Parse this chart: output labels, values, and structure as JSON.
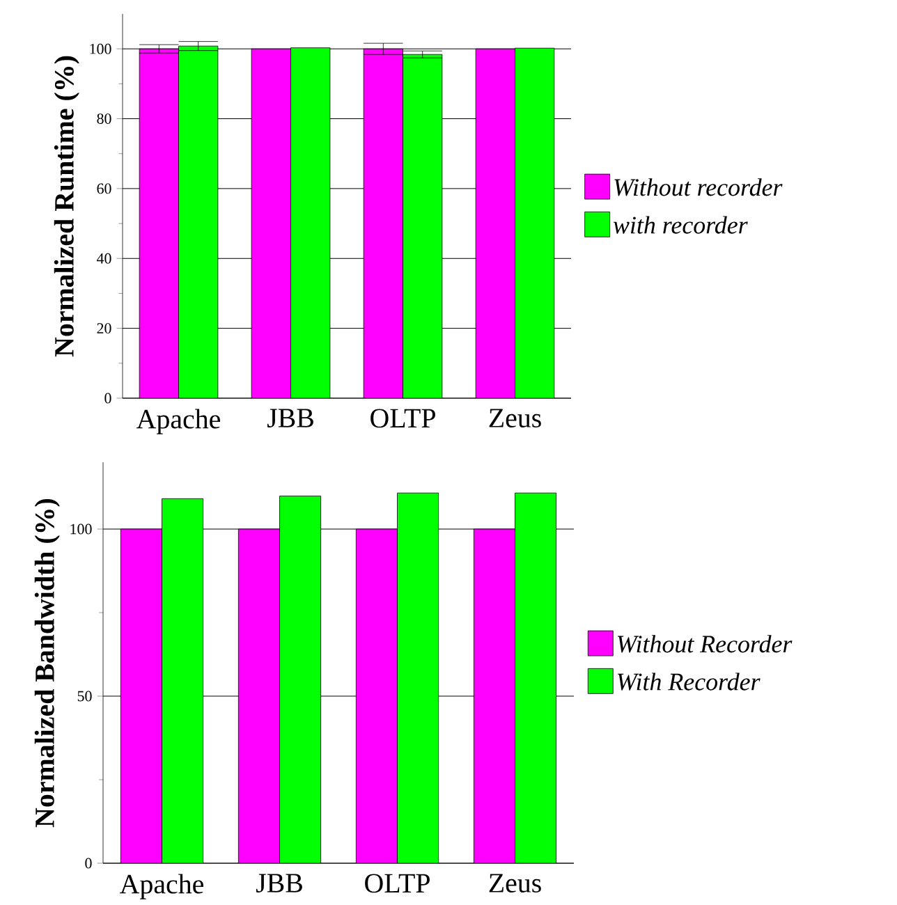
{
  "chart_data": [
    {
      "type": "bar",
      "ylabel": "Normalized Runtime (%)",
      "categories": [
        "Apache",
        "JBB",
        "OLTP",
        "Zeus"
      ],
      "series": [
        {
          "name": "Without recorder",
          "color": "#ff00ff",
          "values": [
            100,
            100,
            100,
            100
          ],
          "errors": [
            1.2,
            null,
            1.6,
            null
          ]
        },
        {
          "name": "with recorder",
          "color": "#00ff00",
          "values": [
            100.8,
            100.3,
            98.4,
            100.2
          ],
          "errors": [
            1.3,
            null,
            1,
            null
          ]
        }
      ],
      "ylim": [
        0,
        110
      ],
      "yticks": [
        0,
        20,
        40,
        60,
        80,
        100
      ],
      "grid": "y",
      "legend": "right"
    },
    {
      "type": "bar",
      "ylabel": "Normalized Bandwidth (%)",
      "categories": [
        "Apache",
        "JBB",
        "OLTP",
        "Zeus"
      ],
      "series": [
        {
          "name": "Without Recorder",
          "color": "#ff00ff",
          "values": [
            100,
            100,
            100,
            100
          ]
        },
        {
          "name": "With Recorder",
          "color": "#00ff00",
          "values": [
            109.1,
            109.9,
            110.8,
            110.8
          ]
        }
      ],
      "ylim": [
        0,
        120
      ],
      "yticks": [
        0,
        50,
        100
      ],
      "grid": "y",
      "legend": "right"
    }
  ]
}
